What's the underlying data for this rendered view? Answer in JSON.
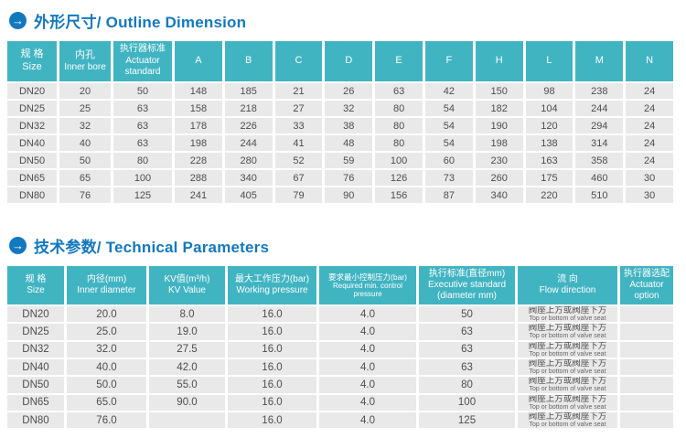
{
  "colors": {
    "accent_teal": "#41b4c2",
    "title_blue": "#1478be",
    "row_bg": "#e9e9e9",
    "row_text": "#4d4d4d",
    "header_text": "#ffffff"
  },
  "icons": {
    "arrow_right": "→"
  },
  "section1": {
    "title": "外形尺寸/ Outline Dimension"
  },
  "section2": {
    "title": "技术参数/ Technical Parameters"
  },
  "outline_table": {
    "headers_named": [
      {
        "zh": "规 格",
        "en": "Size"
      },
      {
        "zh": "内孔",
        "en": "Inner bore"
      },
      {
        "zh": "执行器标准",
        "en": "Actuator standard"
      }
    ],
    "letter_columns": [
      "A",
      "B",
      "C",
      "D",
      "E",
      "F",
      "H",
      "L",
      "M",
      "N"
    ],
    "rows": [
      [
        "DN20",
        "20",
        "50",
        "148",
        "185",
        "21",
        "26",
        "63",
        "42",
        "150",
        "98",
        "238",
        "24"
      ],
      [
        "DN25",
        "25",
        "63",
        "158",
        "218",
        "27",
        "32",
        "80",
        "54",
        "182",
        "104",
        "244",
        "24"
      ],
      [
        "DN32",
        "32",
        "63",
        "178",
        "226",
        "33",
        "38",
        "80",
        "54",
        "190",
        "120",
        "294",
        "24"
      ],
      [
        "DN40",
        "40",
        "63",
        "198",
        "244",
        "41",
        "48",
        "80",
        "54",
        "198",
        "138",
        "314",
        "24"
      ],
      [
        "DN50",
        "50",
        "80",
        "228",
        "280",
        "52",
        "59",
        "100",
        "60",
        "230",
        "163",
        "358",
        "24"
      ],
      [
        "DN65",
        "65",
        "100",
        "288",
        "340",
        "67",
        "76",
        "126",
        "73",
        "260",
        "175",
        "460",
        "30"
      ],
      [
        "DN80",
        "76",
        "125",
        "241",
        "405",
        "79",
        "90",
        "156",
        "87",
        "340",
        "220",
        "510",
        "30"
      ]
    ]
  },
  "tech_table": {
    "headers": [
      {
        "zh": "规 格",
        "en": "Size",
        "small": false
      },
      {
        "zh": "内径(mm)",
        "en": "Inner diameter",
        "small": false
      },
      {
        "zh": "KV值(m³/h)",
        "en": "KV Value",
        "small": false
      },
      {
        "zh": "最大工作压力(bar)",
        "en": "Working pressure",
        "small": false
      },
      {
        "zh": "要求最小控制压力(bar)",
        "en": "Required min. control pressure",
        "small": true
      },
      {
        "zh": "执行标准(直径mm)",
        "en": "Executive standard (diameter mm)",
        "small": false
      },
      {
        "zh": "流  向",
        "en": "Flow direction",
        "small": false
      },
      {
        "zh": "执行器选配",
        "en": "Actuator option",
        "small": false
      }
    ],
    "flow_direction": {
      "zh": "阀座上方或阀座下方",
      "en": "Top or bottom of valve seat"
    },
    "rows": [
      {
        "size": "DN20",
        "inner_diameter": "20.0",
        "kv_value": "8.0",
        "working_pressure": "16.0",
        "required_min_control_pressure": "4.0",
        "executive_standard": "50",
        "actuator_option": ""
      },
      {
        "size": "DN25",
        "inner_diameter": "25.0",
        "kv_value": "19.0",
        "working_pressure": "16.0",
        "required_min_control_pressure": "4.0",
        "executive_standard": "63",
        "actuator_option": ""
      },
      {
        "size": "DN32",
        "inner_diameter": "32.0",
        "kv_value": "27.5",
        "working_pressure": "16.0",
        "required_min_control_pressure": "4.0",
        "executive_standard": "63",
        "actuator_option": ""
      },
      {
        "size": "DN40",
        "inner_diameter": "40.0",
        "kv_value": "42.0",
        "working_pressure": "16.0",
        "required_min_control_pressure": "4.0",
        "executive_standard": "63",
        "actuator_option": ""
      },
      {
        "size": "DN50",
        "inner_diameter": "50.0",
        "kv_value": "55.0",
        "working_pressure": "16.0",
        "required_min_control_pressure": "4.0",
        "executive_standard": "80",
        "actuator_option": ""
      },
      {
        "size": "DN65",
        "inner_diameter": "65.0",
        "kv_value": "90.0",
        "working_pressure": "16.0",
        "required_min_control_pressure": "4.0",
        "executive_standard": "100",
        "actuator_option": ""
      },
      {
        "size": "DN80",
        "inner_diameter": "76.0",
        "kv_value": "",
        "working_pressure": "16.0",
        "required_min_control_pressure": "4.0",
        "executive_standard": "125",
        "actuator_option": ""
      }
    ]
  }
}
